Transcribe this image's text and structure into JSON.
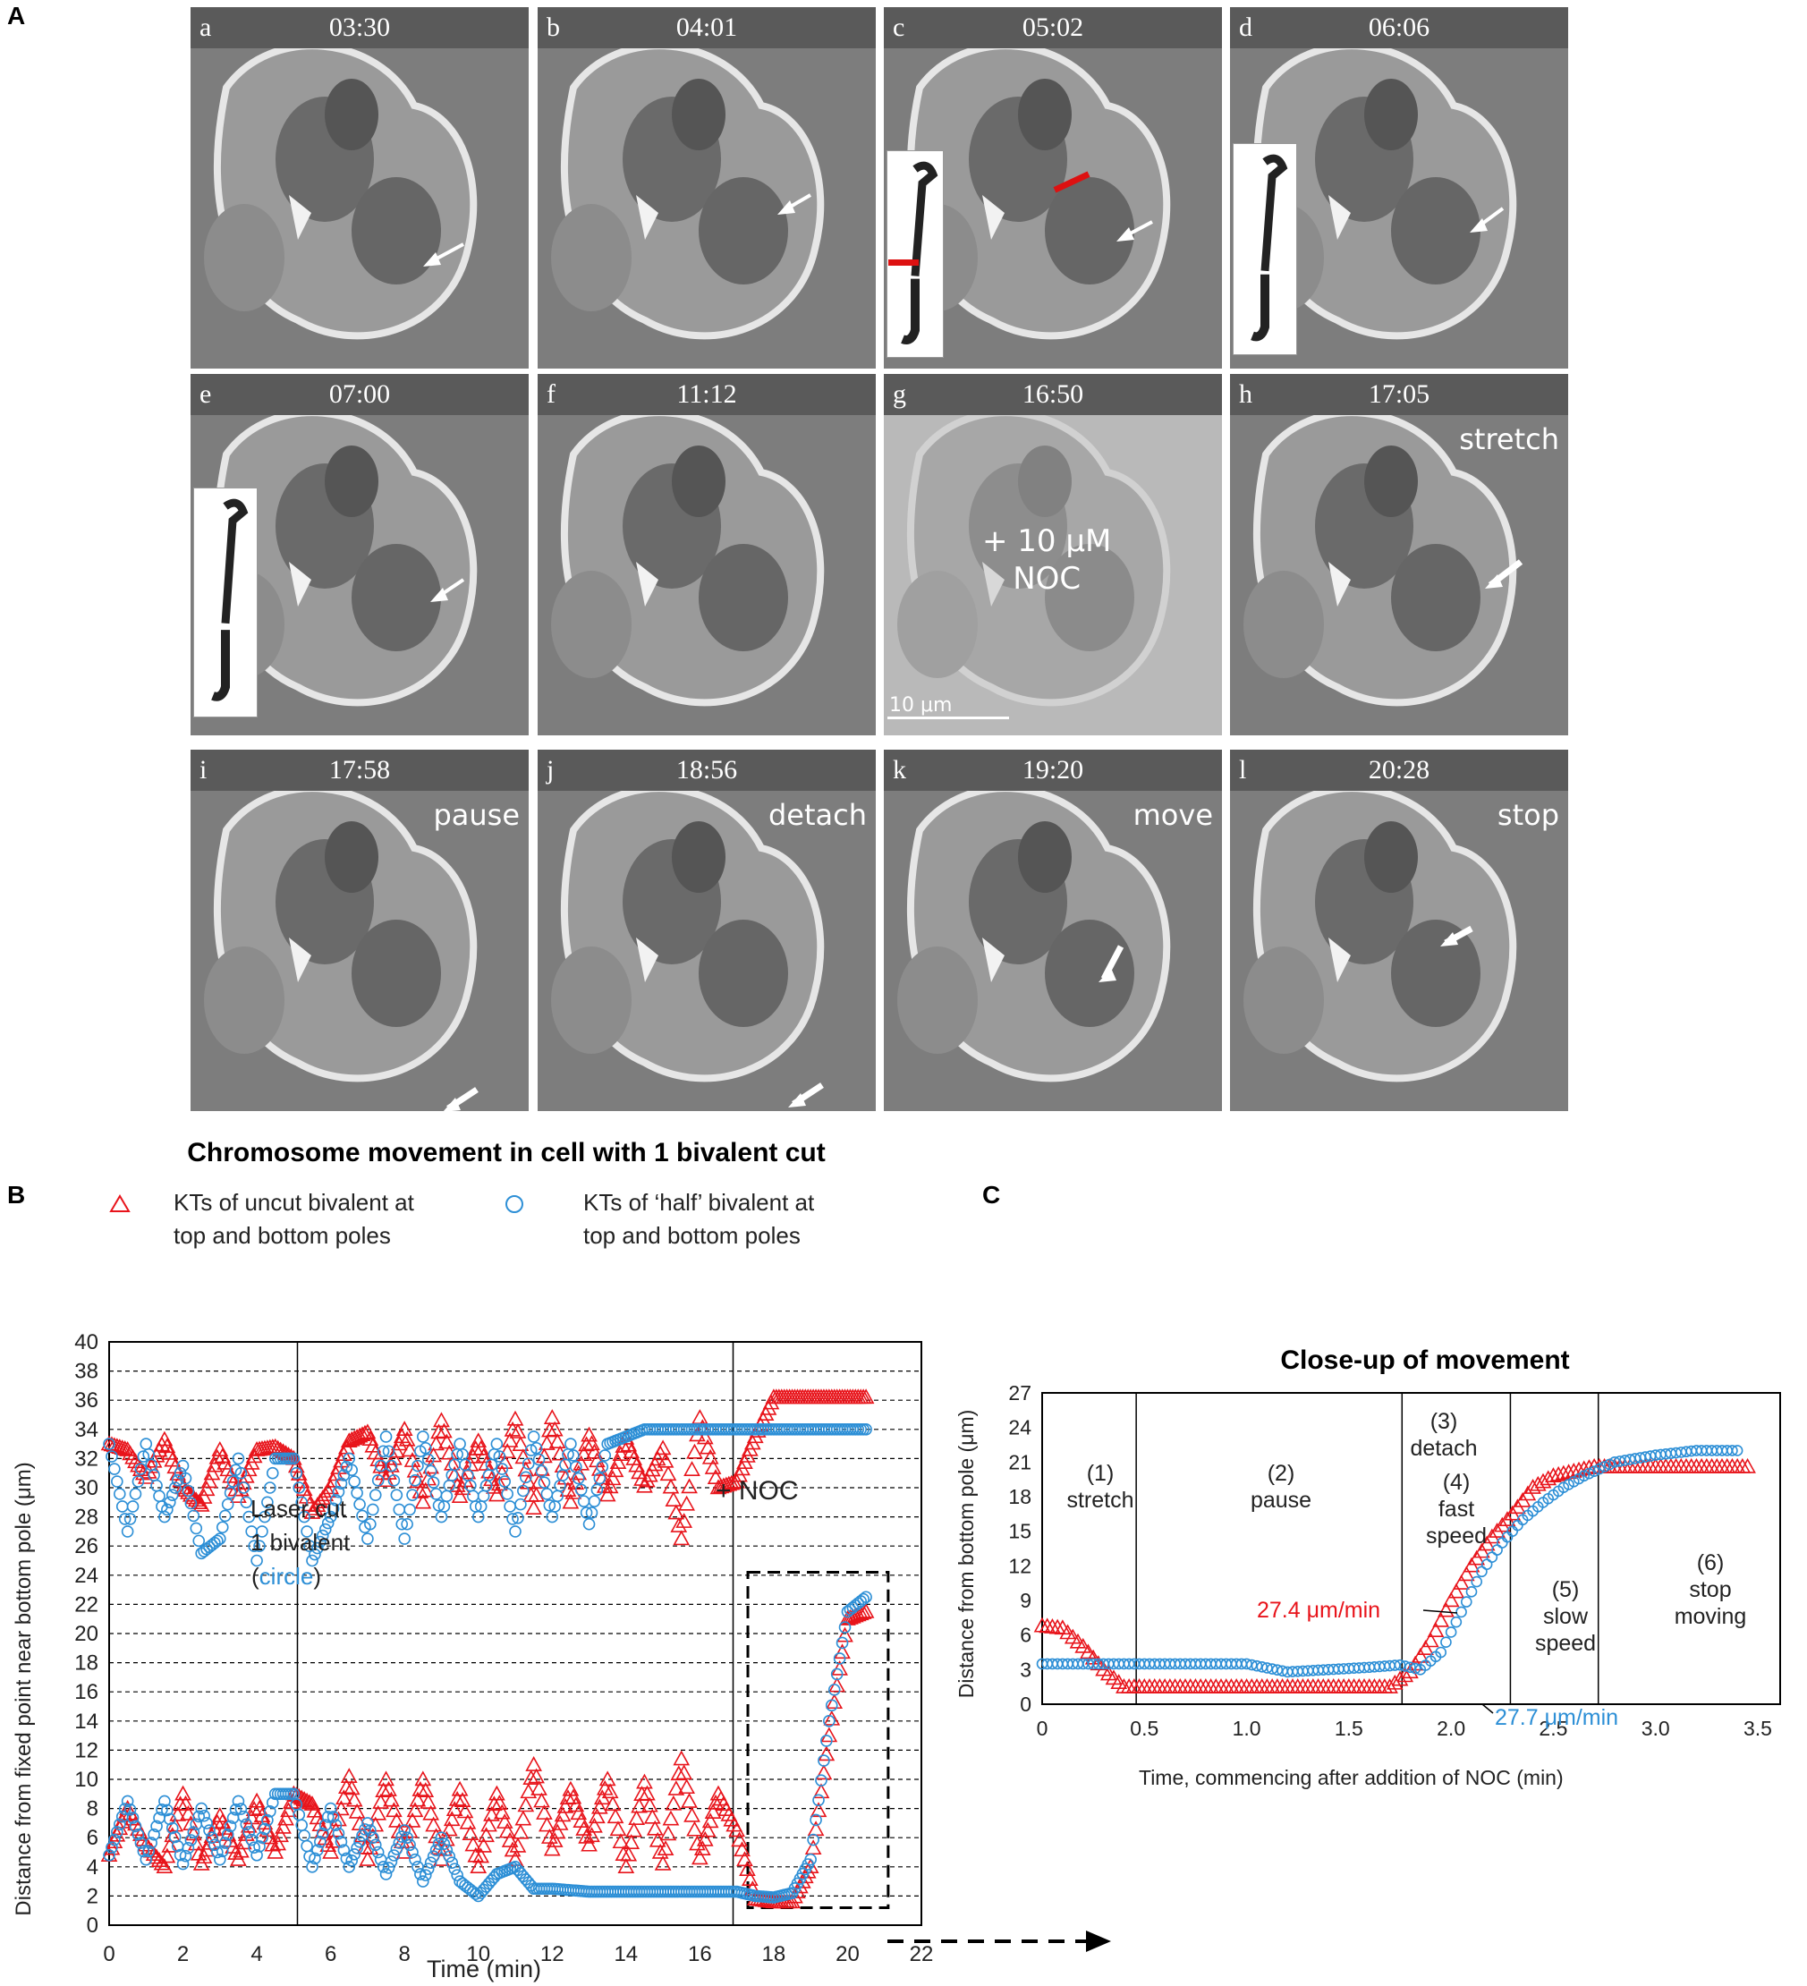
{
  "panel_a": {
    "letter": "A",
    "frames": [
      {
        "letter": "a",
        "time": "03:30",
        "label": ""
      },
      {
        "letter": "b",
        "time": "04:01",
        "label": ""
      },
      {
        "letter": "c",
        "time": "05:02",
        "label": ""
      },
      {
        "letter": "d",
        "time": "06:06",
        "label": ""
      },
      {
        "letter": "e",
        "time": "07:00",
        "label": ""
      },
      {
        "letter": "f",
        "time": "11:12",
        "label": ""
      },
      {
        "letter": "g",
        "time": "16:50",
        "label": ""
      },
      {
        "letter": "h",
        "time": "17:05",
        "label": "stretch"
      },
      {
        "letter": "i",
        "time": "17:58",
        "label": "pause"
      },
      {
        "letter": "j",
        "time": "18:56",
        "label": "detach"
      },
      {
        "letter": "k",
        "time": "19:20",
        "label": "move"
      },
      {
        "letter": "l",
        "time": "20:28",
        "label": "stop"
      }
    ],
    "noc_line1": "+ 10 μM",
    "noc_line2": "NOC",
    "scale_bar": "10 μm"
  },
  "panel_b": {
    "letter": "B",
    "title": "Chromosome movement in cell with 1 bivalent cut",
    "legend": {
      "triangle_line1": "KTs of uncut bivalent at",
      "triangle_line2": "top and bottom poles",
      "circle_line1": "KTs of ‘half’ bivalent at",
      "circle_line2": "top and bottom poles"
    },
    "ylabel": "Distance from fixed point near bottom  pole (μm)",
    "xlabel": "Time (min)",
    "annot_laser1": "Laser cut",
    "annot_laser2": "1 bivalent",
    "annot_laser3_open": "(",
    "annot_laser3_word": "circle",
    "annot_laser3_close": ")",
    "annot_noc": "+ NOC",
    "colors": {
      "triangle": "#e8141b",
      "circle": "#2d8fd6"
    }
  },
  "panel_c": {
    "letter": "C",
    "title": "Close-up of movement",
    "ylabel": "Distance from bottom  pole (μm)",
    "xlabel": "Time, commencing after addition of NOC (min)",
    "phases": [
      {
        "num": "(1)",
        "l1": "stretch",
        "l2": ""
      },
      {
        "num": "(2)",
        "l1": "pause",
        "l2": ""
      },
      {
        "num": "(3)",
        "l1": "detach",
        "l2": ""
      },
      {
        "num": "(4)",
        "l1": "fast",
        "l2": "speed"
      },
      {
        "num": "(5)",
        "l1": "slow",
        "l2": "speed"
      },
      {
        "num": "(6)",
        "l1": "stop",
        "l2": "moving"
      }
    ],
    "rate_red": "27.4 μm/min",
    "rate_blue": "27.7 μm/min"
  },
  "chart_data": [
    {
      "type": "scatter",
      "panel": "B",
      "title": "Chromosome movement in cell with 1 bivalent cut",
      "xlabel": "Time (min)",
      "ylabel": "Distance from fixed point near bottom  pole (μm)",
      "xlim": [
        0,
        22
      ],
      "ylim": [
        0,
        40
      ],
      "xticks": [
        0,
        2,
        4,
        6,
        8,
        10,
        12,
        14,
        16,
        18,
        20,
        22
      ],
      "yticks": [
        0,
        2,
        4,
        6,
        8,
        10,
        12,
        14,
        16,
        18,
        20,
        22,
        24,
        26,
        28,
        30,
        32,
        34,
        36,
        38,
        40
      ],
      "grid": "horizontal dashed",
      "vlines": [
        5.1,
        16.9
      ],
      "dashed_box": {
        "x": [
          17.3,
          21.1
        ],
        "y": [
          1.2,
          24.2
        ]
      },
      "series": [
        {
          "name": "KTs of uncut bivalent at top and bottom poles",
          "marker": "triangle",
          "color": "#e8141b",
          "top_points": [
            [
              0,
              33
            ],
            [
              0.5,
              32.6
            ],
            [
              1,
              30.7
            ],
            [
              1.5,
              33.3
            ],
            [
              2,
              30
            ],
            [
              2.5,
              28.8
            ],
            [
              3,
              32.6
            ],
            [
              3.5,
              29.4
            ],
            [
              4,
              32.6
            ],
            [
              4.5,
              32.8
            ],
            [
              5,
              32
            ],
            [
              5.5,
              28.3
            ],
            [
              6,
              30
            ],
            [
              6.5,
              33.2
            ],
            [
              7,
              33.8
            ],
            [
              7.5,
              30.5
            ],
            [
              8,
              34
            ],
            [
              8.5,
              29
            ],
            [
              9,
              34.6
            ],
            [
              9.5,
              29.4
            ],
            [
              10,
              33.2
            ],
            [
              10.5,
              29.5
            ],
            [
              11,
              34.7
            ],
            [
              11.5,
              28.6
            ],
            [
              12,
              34.8
            ],
            [
              12.5,
              29
            ],
            [
              13,
              33.6
            ],
            [
              13.5,
              29.5
            ],
            [
              14,
              33.4
            ],
            [
              14.5,
              30.1
            ],
            [
              15,
              32.7
            ],
            [
              15.5,
              26.5
            ],
            [
              16,
              34.8
            ],
            [
              16.5,
              30
            ],
            [
              17,
              30.4
            ],
            [
              17.5,
              33.5
            ],
            [
              18,
              36.2
            ],
            [
              19,
              36.2
            ],
            [
              20,
              36.2
            ],
            [
              20.5,
              36.2
            ]
          ],
          "bottom_points": [
            [
              0,
              4.8
            ],
            [
              0.5,
              8
            ],
            [
              1,
              5.5
            ],
            [
              1.5,
              4
            ],
            [
              2,
              9
            ],
            [
              2.5,
              4.2
            ],
            [
              3,
              7.5
            ],
            [
              3.5,
              4.5
            ],
            [
              4,
              8.5
            ],
            [
              4.5,
              5
            ],
            [
              5,
              9
            ],
            [
              5.5,
              8.3
            ],
            [
              6,
              5
            ],
            [
              6.5,
              10.2
            ],
            [
              7,
              4.5
            ],
            [
              7.5,
              10
            ],
            [
              8,
              5
            ],
            [
              8.5,
              10
            ],
            [
              9,
              4.5
            ],
            [
              9.5,
              9.3
            ],
            [
              10,
              4
            ],
            [
              10.5,
              9
            ],
            [
              11,
              4.5
            ],
            [
              11.5,
              11
            ],
            [
              12,
              5.2
            ],
            [
              12.5,
              9.3
            ],
            [
              13,
              5.5
            ],
            [
              13.5,
              10
            ],
            [
              14,
              4
            ],
            [
              14.5,
              9.8
            ],
            [
              15,
              4.2
            ],
            [
              15.5,
              11.4
            ],
            [
              16,
              4.6
            ],
            [
              16.5,
              9
            ],
            [
              17,
              6.5
            ],
            [
              17.5,
              1.8
            ],
            [
              18,
              1.6
            ],
            [
              18.5,
              1.6
            ],
            [
              19,
              4
            ],
            [
              19.5,
              13
            ],
            [
              20,
              21
            ],
            [
              20.5,
              21.5
            ]
          ]
        },
        {
          "name": "KTs of ‘half’ bivalent at top and bottom poles",
          "marker": "circle",
          "color": "#2d8fd6",
          "top_points": [
            [
              0,
              33
            ],
            [
              0.5,
              27
            ],
            [
              1,
              33
            ],
            [
              1.5,
              28
            ],
            [
              2,
              31.5
            ],
            [
              2.5,
              25.5
            ],
            [
              3,
              26.5
            ],
            [
              3.5,
              32
            ],
            [
              4,
              25
            ],
            [
              4.5,
              32
            ],
            [
              5,
              32
            ],
            [
              5.5,
              25
            ],
            [
              6,
              28
            ],
            [
              6.5,
              32
            ],
            [
              7,
              26.5
            ],
            [
              7.5,
              33.5
            ],
            [
              8,
              26.5
            ],
            [
              8.5,
              33.5
            ],
            [
              9,
              28
            ],
            [
              9.5,
              33
            ],
            [
              10,
              28
            ],
            [
              10.5,
              33
            ],
            [
              11,
              27
            ],
            [
              11.5,
              33.5
            ],
            [
              12,
              28
            ],
            [
              12.5,
              33
            ],
            [
              13,
              27.5
            ],
            [
              13.5,
              33
            ],
            [
              14,
              33.5
            ],
            [
              14.5,
              34
            ],
            [
              15,
              34
            ],
            [
              16,
              34
            ],
            [
              17,
              34
            ],
            [
              18,
              34
            ],
            [
              19,
              34
            ],
            [
              20,
              34
            ],
            [
              20.5,
              34
            ]
          ],
          "bottom_points": [
            [
              0,
              4.8
            ],
            [
              0.5,
              8.5
            ],
            [
              1,
              4.5
            ],
            [
              1.5,
              8.5
            ],
            [
              2,
              4.2
            ],
            [
              2.5,
              8
            ],
            [
              3,
              4.5
            ],
            [
              3.5,
              8.5
            ],
            [
              4,
              4.8
            ],
            [
              4.5,
              9
            ],
            [
              5,
              9
            ],
            [
              5.5,
              4
            ],
            [
              6,
              8
            ],
            [
              6.5,
              4
            ],
            [
              7,
              7
            ],
            [
              7.5,
              3.5
            ],
            [
              8,
              6.5
            ],
            [
              8.5,
              3
            ],
            [
              9,
              6
            ],
            [
              9.5,
              3
            ],
            [
              10,
              2
            ],
            [
              10.5,
              3.5
            ],
            [
              11,
              4
            ],
            [
              11.5,
              2.5
            ],
            [
              12,
              2.5
            ],
            [
              13,
              2.3
            ],
            [
              14,
              2.3
            ],
            [
              15,
              2.3
            ],
            [
              16,
              2.3
            ],
            [
              17,
              2.3
            ],
            [
              17.5,
              2
            ],
            [
              18,
              1.9
            ],
            [
              18.5,
              2.2
            ],
            [
              19,
              4.5
            ],
            [
              19.5,
              14
            ],
            [
              20,
              21.5
            ],
            [
              20.5,
              22.5
            ]
          ]
        }
      ]
    },
    {
      "type": "scatter",
      "panel": "C",
      "title": "Close-up of movement",
      "xlabel": "Time, commencing after addition of NOC (min)",
      "ylabel": "Distance from bottom  pole (μm)",
      "xlim": [
        0,
        3.5
      ],
      "ylim": [
        0,
        27
      ],
      "xticks": [
        0,
        0.5,
        1.0,
        1.5,
        2.0,
        2.5,
        3.0,
        3.5
      ],
      "yticks": [
        0,
        3,
        6,
        9,
        12,
        15,
        18,
        21,
        24,
        27
      ],
      "phase_boundaries": [
        0.46,
        1.76,
        2.29,
        2.72
      ],
      "series": [
        {
          "name": "KTs of uncut bivalent at top and bottom poles",
          "marker": "triangle",
          "color": "#e8141b",
          "points": [
            [
              0,
              6.8
            ],
            [
              0.1,
              6.6
            ],
            [
              0.2,
              5
            ],
            [
              0.3,
              3
            ],
            [
              0.4,
              1.5
            ],
            [
              0.5,
              1.5
            ],
            [
              0.8,
              1.5
            ],
            [
              1.1,
              1.5
            ],
            [
              1.4,
              1.5
            ],
            [
              1.7,
              1.5
            ],
            [
              1.8,
              2.8
            ],
            [
              1.9,
              5.5
            ],
            [
              2.0,
              9
            ],
            [
              2.1,
              12
            ],
            [
              2.2,
              14.5
            ],
            [
              2.3,
              16.5
            ],
            [
              2.4,
              18.8
            ],
            [
              2.5,
              19.8
            ],
            [
              2.6,
              20.2
            ],
            [
              2.7,
              20.6
            ],
            [
              2.9,
              20.6
            ],
            [
              3.1,
              20.6
            ],
            [
              3.3,
              20.6
            ],
            [
              3.45,
              20.6
            ]
          ]
        },
        {
          "name": "KTs of ‘half’ bivalent at top and bottom poles",
          "marker": "circle",
          "color": "#2d8fd6",
          "points": [
            [
              0,
              3.5
            ],
            [
              0.2,
              3.5
            ],
            [
              0.4,
              3.5
            ],
            [
              0.6,
              3.5
            ],
            [
              0.8,
              3.5
            ],
            [
              1.0,
              3.5
            ],
            [
              1.2,
              2.8
            ],
            [
              1.4,
              3
            ],
            [
              1.6,
              3.2
            ],
            [
              1.75,
              3.4
            ],
            [
              1.85,
              3
            ],
            [
              1.95,
              4.5
            ],
            [
              2.05,
              8
            ],
            [
              2.15,
              11.5
            ],
            [
              2.25,
              14
            ],
            [
              2.35,
              16
            ],
            [
              2.45,
              17.5
            ],
            [
              2.55,
              18.8
            ],
            [
              2.65,
              19.8
            ],
            [
              2.8,
              21
            ],
            [
              3.0,
              21.6
            ],
            [
              3.2,
              22
            ],
            [
              3.4,
              22
            ]
          ]
        }
      ]
    }
  ]
}
